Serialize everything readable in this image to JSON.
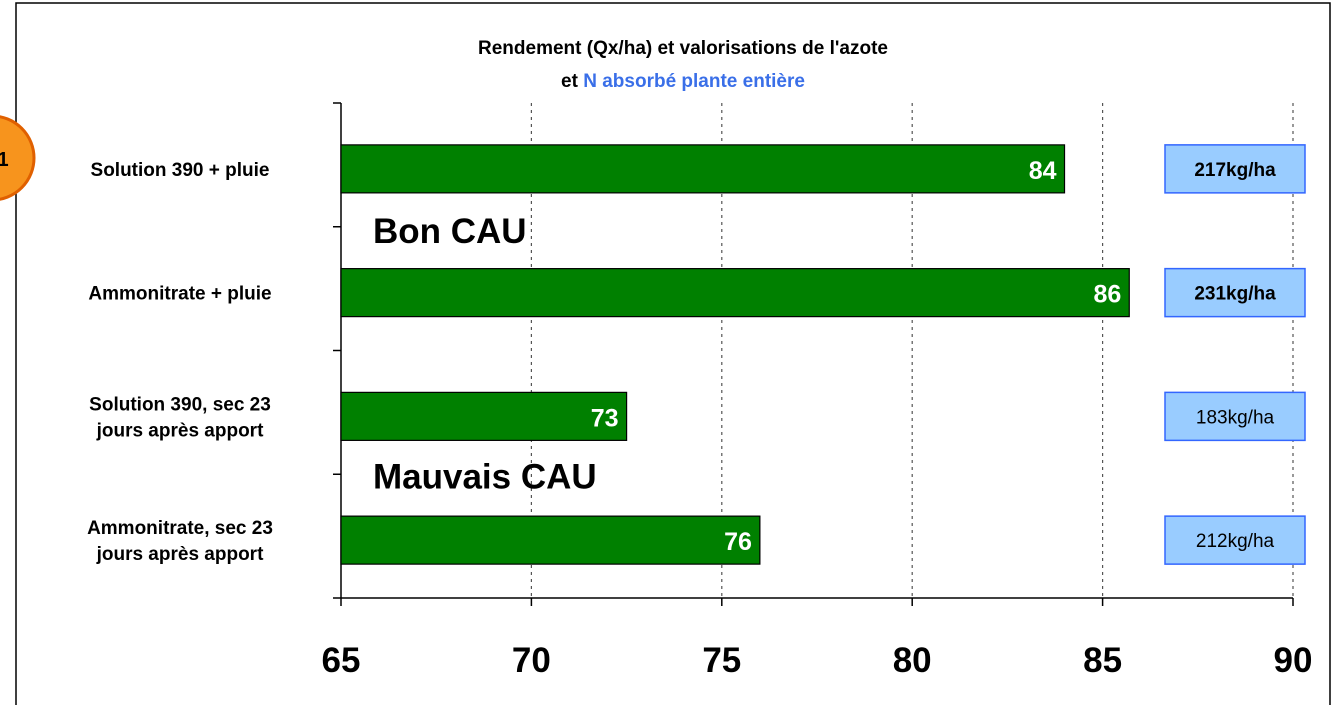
{
  "chart_data": {
    "type": "barh",
    "title": "Rendement (Qx/ha) et valorisations de l'azote",
    "subtitle": [
      "et",
      "N absorbé plante entière"
    ],
    "categories": [
      "Solution 390 + pluie",
      "Ammonitrate + pluie",
      "Solution 390, sec 23 jours après apport",
      "Ammonitrate, sec 23 jours après apport"
    ],
    "values": [
      84,
      85.7,
      72.5,
      76
    ],
    "value_labels": [
      "84",
      "86",
      "73",
      "76"
    ],
    "color": "#008000",
    "xlim": [
      65,
      90
    ],
    "xticks": [
      65,
      70,
      75,
      80,
      85,
      90
    ],
    "grid": true,
    "annotations": [
      "Bon CAU",
      "Mauvais CAU"
    ],
    "n_absorbed": [
      "217kg/ha",
      "231kg/ha",
      "183kg/ha",
      "212kg/ha"
    ],
    "n_absorbed_bold": [
      true,
      true,
      false,
      false
    ],
    "page_marker": "1"
  }
}
